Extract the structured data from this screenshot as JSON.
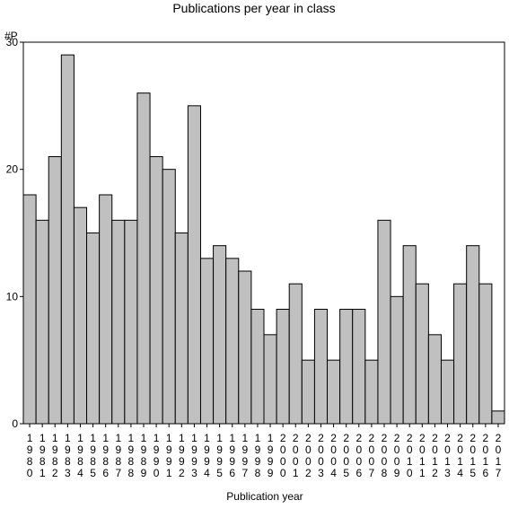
{
  "chart_data": {
    "type": "bar",
    "title": "Publications per year in class",
    "ylabel": "#P",
    "xlabel": "Publication year",
    "ylim": [
      0,
      30
    ],
    "yticks": [
      0,
      10,
      20,
      30
    ],
    "grid": false,
    "bar_color": "#c0c0c0",
    "categories": [
      "1980",
      "1981",
      "1982",
      "1983",
      "1984",
      "1985",
      "1986",
      "1987",
      "1988",
      "1989",
      "1990",
      "1991",
      "1992",
      "1993",
      "1994",
      "1995",
      "1996",
      "1997",
      "1998",
      "1999",
      "2000",
      "2001",
      "2002",
      "2003",
      "2004",
      "2005",
      "2006",
      "2007",
      "2008",
      "2009",
      "2010",
      "2011",
      "2012",
      "2013",
      "2014",
      "2015",
      "2016",
      "2017"
    ],
    "values": [
      18,
      16,
      21,
      29,
      17,
      15,
      18,
      16,
      16,
      26,
      21,
      20,
      15,
      25,
      13,
      14,
      13,
      12,
      9,
      7,
      9,
      11,
      5,
      9,
      5,
      9,
      9,
      5,
      16,
      10,
      14,
      11,
      7,
      5,
      11,
      14,
      11,
      1
    ]
  }
}
